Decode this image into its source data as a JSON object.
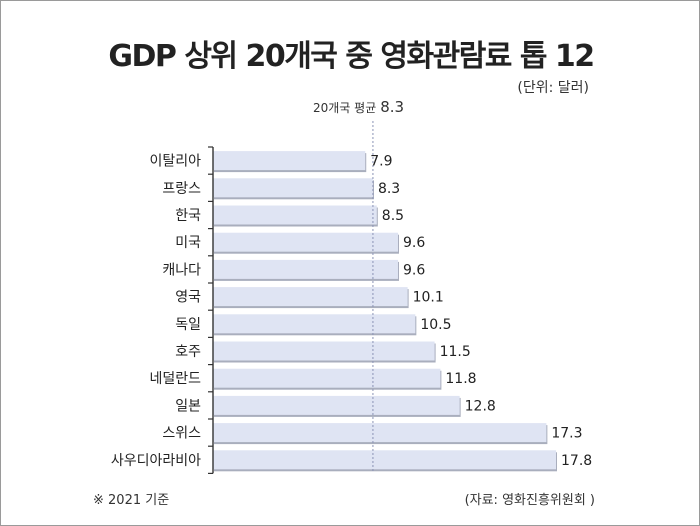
{
  "header": {
    "title": "GDP 상위 20개국 중 영화관람료 톱 12",
    "unit": "(단위: 달러)"
  },
  "average": {
    "label": "20개국 평균",
    "value": 8.3
  },
  "footer": {
    "note": "※ 2021 기준",
    "source": "(자료: 영화진흥위원회 )"
  },
  "colors": {
    "bar_fill": "#dfe4f3",
    "bar_shadow": "#a9aebd",
    "axis": "#333333",
    "avg_line": "#8a93b5"
  },
  "chart_data": {
    "type": "bar",
    "orientation": "horizontal",
    "title": "GDP 상위 20개국 중 영화관람료 톱 12",
    "unit": "(단위: 달러)",
    "categories": [
      "이탈리아",
      "프랑스",
      "한국",
      "미국",
      "캐나다",
      "영국",
      "독일",
      "호주",
      "네덜란드",
      "일본",
      "스위스",
      "사우디아라비아"
    ],
    "values": [
      7.9,
      8.3,
      8.5,
      9.6,
      9.6,
      10.1,
      10.5,
      11.5,
      11.8,
      12.8,
      17.3,
      17.8
    ],
    "value_labels": [
      "7.9",
      "8.3",
      "8.5",
      "9.6",
      "9.6",
      "10.1",
      "10.5",
      "11.5",
      "11.8",
      "12.8",
      "17.3",
      "17.8"
    ],
    "reference_line": {
      "label": "20개국 평균",
      "value": 8.3
    },
    "xlim": [
      0,
      17.8
    ],
    "grid": false,
    "legend": "none"
  }
}
